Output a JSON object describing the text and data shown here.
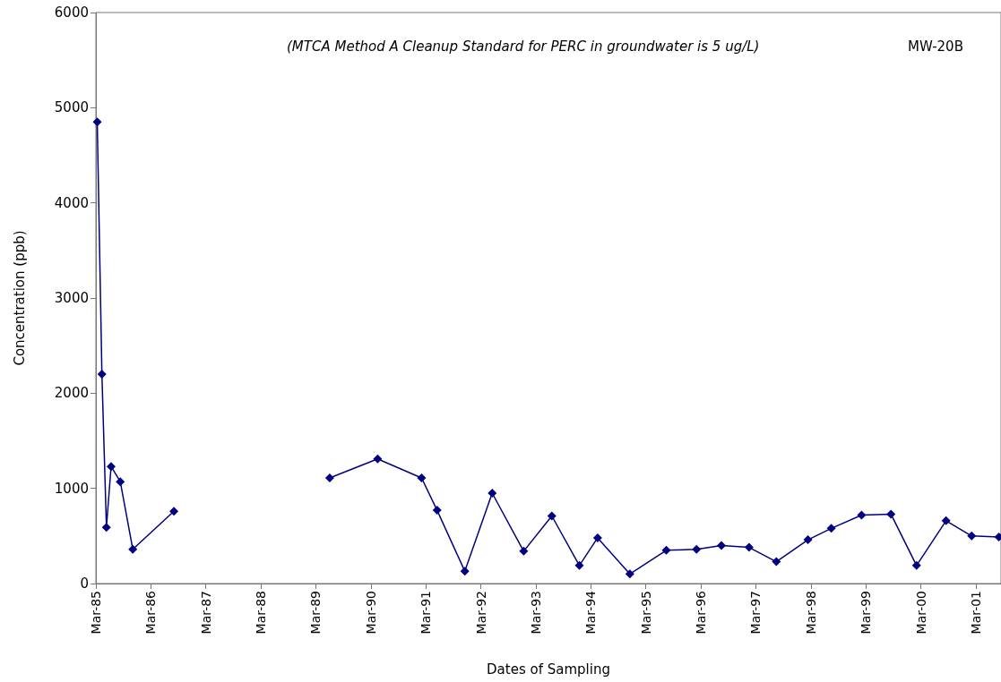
{
  "chart_data": {
    "type": "line",
    "xlabel": "Dates of Sampling",
    "ylabel": "Concentration (ppb)",
    "annotations": [
      "(MTCA Method A Cleanup Standard for PERC in groundwater is 5 ug/L)",
      "MW-20B"
    ],
    "x": [
      "1985-03-10",
      "1985-04-10",
      "1985-05-10",
      "1985-06-10",
      "1985-08-10",
      "1985-11-01",
      "1986-08-01",
      "1987-06-01",
      "1989-06-01",
      "1990-04-15",
      "1991-02-01",
      "1991-05-15",
      "1991-11-15",
      "1992-05-15",
      "1992-12-10",
      "1993-06-15",
      "1993-12-15",
      "1994-04-15",
      "1994-11-15",
      "1995-07-15",
      "1996-02-01",
      "1996-07-15",
      "1997-01-15",
      "1997-07-15",
      "1998-02-10",
      "1998-07-15",
      "1999-02-01",
      "1999-08-15",
      "2000-02-01",
      "2000-08-15",
      "2001-02-01",
      "2001-08-01"
    ],
    "series": [
      {
        "color": "#000080",
        "values": [
          4850,
          2200,
          590,
          1230,
          1070,
          360,
          760,
          null,
          1110,
          1310,
          1110,
          770,
          130,
          950,
          340,
          710,
          190,
          480,
          100,
          350,
          360,
          400,
          380,
          230,
          460,
          580,
          720,
          730,
          190,
          660,
          500,
          490
        ]
      }
    ],
    "xlim": [
      "1985-03-01",
      "2001-08-15"
    ],
    "xticks": [
      {
        "value": "1985-03-01",
        "label": "Mar-85"
      },
      {
        "value": "1986-03-01",
        "label": "Mar-86"
      },
      {
        "value": "1987-03-01",
        "label": "Mar-87"
      },
      {
        "value": "1988-03-01",
        "label": "Mar-88"
      },
      {
        "value": "1989-03-01",
        "label": "Mar-89"
      },
      {
        "value": "1990-03-01",
        "label": "Mar-90"
      },
      {
        "value": "1991-03-01",
        "label": "Mar-91"
      },
      {
        "value": "1992-03-01",
        "label": "Mar-92"
      },
      {
        "value": "1993-03-01",
        "label": "Mar-93"
      },
      {
        "value": "1994-03-01",
        "label": "Mar-94"
      },
      {
        "value": "1995-03-01",
        "label": "Mar-95"
      },
      {
        "value": "1996-03-01",
        "label": "Mar-96"
      },
      {
        "value": "1997-03-01",
        "label": "Mar-97"
      },
      {
        "value": "1998-03-01",
        "label": "Mar-98"
      },
      {
        "value": "1999-03-01",
        "label": "Mar-99"
      },
      {
        "value": "2000-03-01",
        "label": "Mar-00"
      },
      {
        "value": "2001-03-01",
        "label": "Mar-01"
      }
    ],
    "ylim": [
      0,
      6000
    ],
    "yticks": [
      0,
      1000,
      2000,
      3000,
      4000,
      5000,
      6000
    ],
    "grid": false,
    "marker": "diamond",
    "line_style": "solid"
  }
}
